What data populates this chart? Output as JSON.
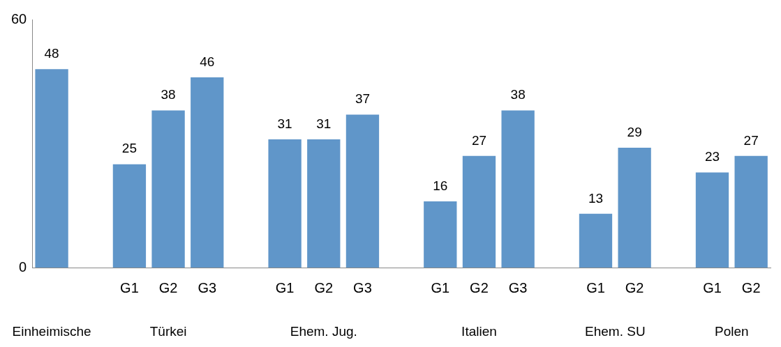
{
  "chart_data": {
    "type": "bar",
    "categories": [
      null,
      null,
      "G1",
      "G2",
      "G3",
      null,
      "G1",
      "G2",
      "G3",
      null,
      "G1",
      "G2",
      "G3",
      null,
      "G1",
      "G2",
      null,
      "G1",
      "G2"
    ],
    "values": [
      48,
      null,
      25,
      38,
      46,
      null,
      31,
      31,
      37,
      null,
      16,
      27,
      38,
      null,
      13,
      29,
      null,
      23,
      27
    ],
    "color": "#6096c9",
    "ylim": [
      0,
      60
    ],
    "yticks": [
      0,
      60
    ],
    "grid": false,
    "legend": false,
    "data_labels": true,
    "annotations": [
      "Einheimische",
      "Türkei",
      "Ehem. Jug.",
      "Italien",
      "Ehem. SU",
      "Polen"
    ]
  }
}
